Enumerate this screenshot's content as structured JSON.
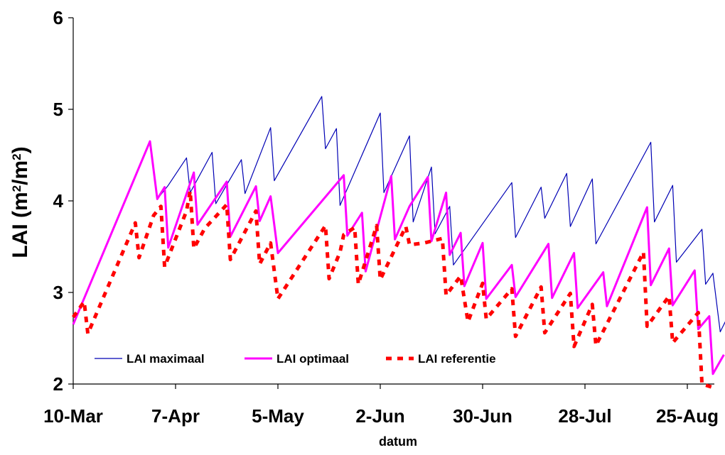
{
  "chart_data": {
    "type": "line",
    "xlabel": "datum",
    "ylabel_main": "LAI (m",
    "ylabel_sup": "2",
    "ylabel_mid": "/m",
    "ylabel_close": ")",
    "ylim": [
      2,
      6
    ],
    "yticks": [
      "2",
      "3",
      "4",
      "5",
      "6"
    ],
    "xticks": [
      "10-Mar",
      "7-Apr",
      "5-May",
      "2-Jun",
      "30-Jun",
      "28-Jul",
      "25-Aug"
    ],
    "legend_position": "bottom-left, inside plot",
    "series": [
      {
        "name": "LAI maximaal",
        "color": "#0000b4",
        "style": "solid-thin",
        "points": [
          [
            "2024-03-10",
            2.65
          ],
          [
            "2024-03-31",
            4.65
          ],
          [
            "2024-04-02",
            4.02
          ],
          [
            "2024-04-05",
            4.17
          ],
          [
            "2024-04-10",
            4.47
          ],
          [
            "2024-04-11",
            4.09
          ],
          [
            "2024-04-17",
            4.53
          ],
          [
            "2024-04-18",
            3.97
          ],
          [
            "2024-04-25",
            4.45
          ],
          [
            "2024-04-26",
            4.08
          ],
          [
            "2024-05-03",
            4.8
          ],
          [
            "2024-05-04",
            4.22
          ],
          [
            "2024-05-17",
            5.14
          ],
          [
            "2024-05-18",
            4.57
          ],
          [
            "2024-05-21",
            4.79
          ],
          [
            "2024-05-22",
            3.95
          ],
          [
            "2024-06-02",
            4.96
          ],
          [
            "2024-06-03",
            4.09
          ],
          [
            "2024-06-10",
            4.71
          ],
          [
            "2024-06-11",
            3.77
          ],
          [
            "2024-06-16",
            4.37
          ],
          [
            "2024-06-17",
            3.64
          ],
          [
            "2024-06-21",
            3.94
          ],
          [
            "2024-06-22",
            3.3
          ],
          [
            "2024-07-08",
            4.2
          ],
          [
            "2024-07-09",
            3.6
          ],
          [
            "2024-07-16",
            4.15
          ],
          [
            "2024-07-17",
            3.81
          ],
          [
            "2024-07-23",
            4.3
          ],
          [
            "2024-07-24",
            3.72
          ],
          [
            "2024-07-30",
            4.24
          ],
          [
            "2024-07-31",
            3.53
          ],
          [
            "2024-08-15",
            4.64
          ],
          [
            "2024-08-16",
            3.77
          ],
          [
            "2024-08-21",
            4.17
          ],
          [
            "2024-08-22",
            3.33
          ],
          [
            "2024-08-29",
            3.69
          ],
          [
            "2024-08-30",
            3.09
          ],
          [
            "2024-09-01",
            3.21
          ],
          [
            "2024-09-03",
            2.57
          ],
          [
            "2024-09-06",
            2.81
          ]
        ]
      },
      {
        "name": "LAI optimaal",
        "color": "#ff00ff",
        "style": "solid-thick",
        "points": [
          [
            "2024-03-10",
            2.65
          ],
          [
            "2024-03-31",
            4.65
          ],
          [
            "2024-04-02",
            4.02
          ],
          [
            "2024-04-04",
            4.15
          ],
          [
            "2024-04-05",
            3.49
          ],
          [
            "2024-04-12",
            4.31
          ],
          [
            "2024-04-13",
            3.74
          ],
          [
            "2024-04-21",
            4.21
          ],
          [
            "2024-04-22",
            3.61
          ],
          [
            "2024-04-29",
            4.16
          ],
          [
            "2024-04-30",
            3.78
          ],
          [
            "2024-05-03",
            4.05
          ],
          [
            "2024-05-05",
            3.43
          ],
          [
            "2024-05-23",
            4.28
          ],
          [
            "2024-05-24",
            3.62
          ],
          [
            "2024-05-28",
            3.87
          ],
          [
            "2024-05-29",
            3.23
          ],
          [
            "2024-06-05",
            4.27
          ],
          [
            "2024-06-06",
            3.58
          ],
          [
            "2024-06-10",
            3.94
          ],
          [
            "2024-06-15",
            4.26
          ],
          [
            "2024-06-16",
            3.56
          ],
          [
            "2024-06-20",
            4.09
          ],
          [
            "2024-06-21",
            3.41
          ],
          [
            "2024-06-24",
            3.65
          ],
          [
            "2024-06-25",
            3.07
          ],
          [
            "2024-06-30",
            3.54
          ],
          [
            "2024-07-01",
            2.93
          ],
          [
            "2024-07-08",
            3.3
          ],
          [
            "2024-07-09",
            2.95
          ],
          [
            "2024-07-18",
            3.53
          ],
          [
            "2024-07-19",
            2.94
          ],
          [
            "2024-07-25",
            3.43
          ],
          [
            "2024-07-26",
            2.83
          ],
          [
            "2024-08-02",
            3.22
          ],
          [
            "2024-08-03",
            2.85
          ],
          [
            "2024-08-14",
            3.93
          ],
          [
            "2024-08-15",
            3.08
          ],
          [
            "2024-08-20",
            3.48
          ],
          [
            "2024-08-21",
            2.86
          ],
          [
            "2024-08-27",
            3.24
          ],
          [
            "2024-08-28",
            2.6
          ],
          [
            "2024-08-31",
            2.74
          ],
          [
            "2024-09-01",
            2.11
          ],
          [
            "2024-09-04",
            2.32
          ]
        ]
      },
      {
        "name": "LAI referentie",
        "color": "#ff0000",
        "style": "dashed-thick",
        "points": [
          [
            "2024-03-10",
            2.73
          ],
          [
            "2024-03-13",
            2.9
          ],
          [
            "2024-03-14",
            2.55
          ],
          [
            "2024-03-27",
            3.76
          ],
          [
            "2024-03-28",
            3.38
          ],
          [
            "2024-04-01",
            3.84
          ],
          [
            "2024-04-03",
            3.94
          ],
          [
            "2024-04-04",
            3.28
          ],
          [
            "2024-04-10",
            3.89
          ],
          [
            "2024-04-11",
            4.11
          ],
          [
            "2024-04-12",
            3.48
          ],
          [
            "2024-04-15",
            3.7
          ],
          [
            "2024-04-21",
            3.96
          ],
          [
            "2024-04-22",
            3.36
          ],
          [
            "2024-04-29",
            3.89
          ],
          [
            "2024-04-30",
            3.31
          ],
          [
            "2024-05-03",
            3.54
          ],
          [
            "2024-05-05",
            2.93
          ],
          [
            "2024-05-18",
            3.73
          ],
          [
            "2024-05-19",
            3.15
          ],
          [
            "2024-05-22",
            3.44
          ],
          [
            "2024-05-23",
            3.63
          ],
          [
            "2024-05-26",
            3.71
          ],
          [
            "2024-05-27",
            3.09
          ],
          [
            "2024-06-01",
            3.73
          ],
          [
            "2024-06-02",
            3.14
          ],
          [
            "2024-06-09",
            3.72
          ],
          [
            "2024-06-10",
            3.52
          ],
          [
            "2024-06-14",
            3.54
          ],
          [
            "2024-06-19",
            3.59
          ],
          [
            "2024-06-20",
            2.97
          ],
          [
            "2024-06-24",
            3.18
          ],
          [
            "2024-06-26",
            2.68
          ],
          [
            "2024-06-30",
            3.1
          ],
          [
            "2024-07-01",
            2.71
          ],
          [
            "2024-07-08",
            3.04
          ],
          [
            "2024-07-09",
            2.52
          ],
          [
            "2024-07-16",
            3.06
          ],
          [
            "2024-07-17",
            2.56
          ],
          [
            "2024-07-24",
            2.99
          ],
          [
            "2024-07-25",
            2.41
          ],
          [
            "2024-07-30",
            2.87
          ],
          [
            "2024-07-31",
            2.42
          ],
          [
            "2024-08-13",
            3.44
          ],
          [
            "2024-08-14",
            2.63
          ],
          [
            "2024-08-20",
            2.96
          ],
          [
            "2024-08-21",
            2.45
          ],
          [
            "2024-08-28",
            2.78
          ],
          [
            "2024-08-29",
            2.0
          ],
          [
            "2024-09-02",
            1.95
          ]
        ]
      }
    ]
  }
}
